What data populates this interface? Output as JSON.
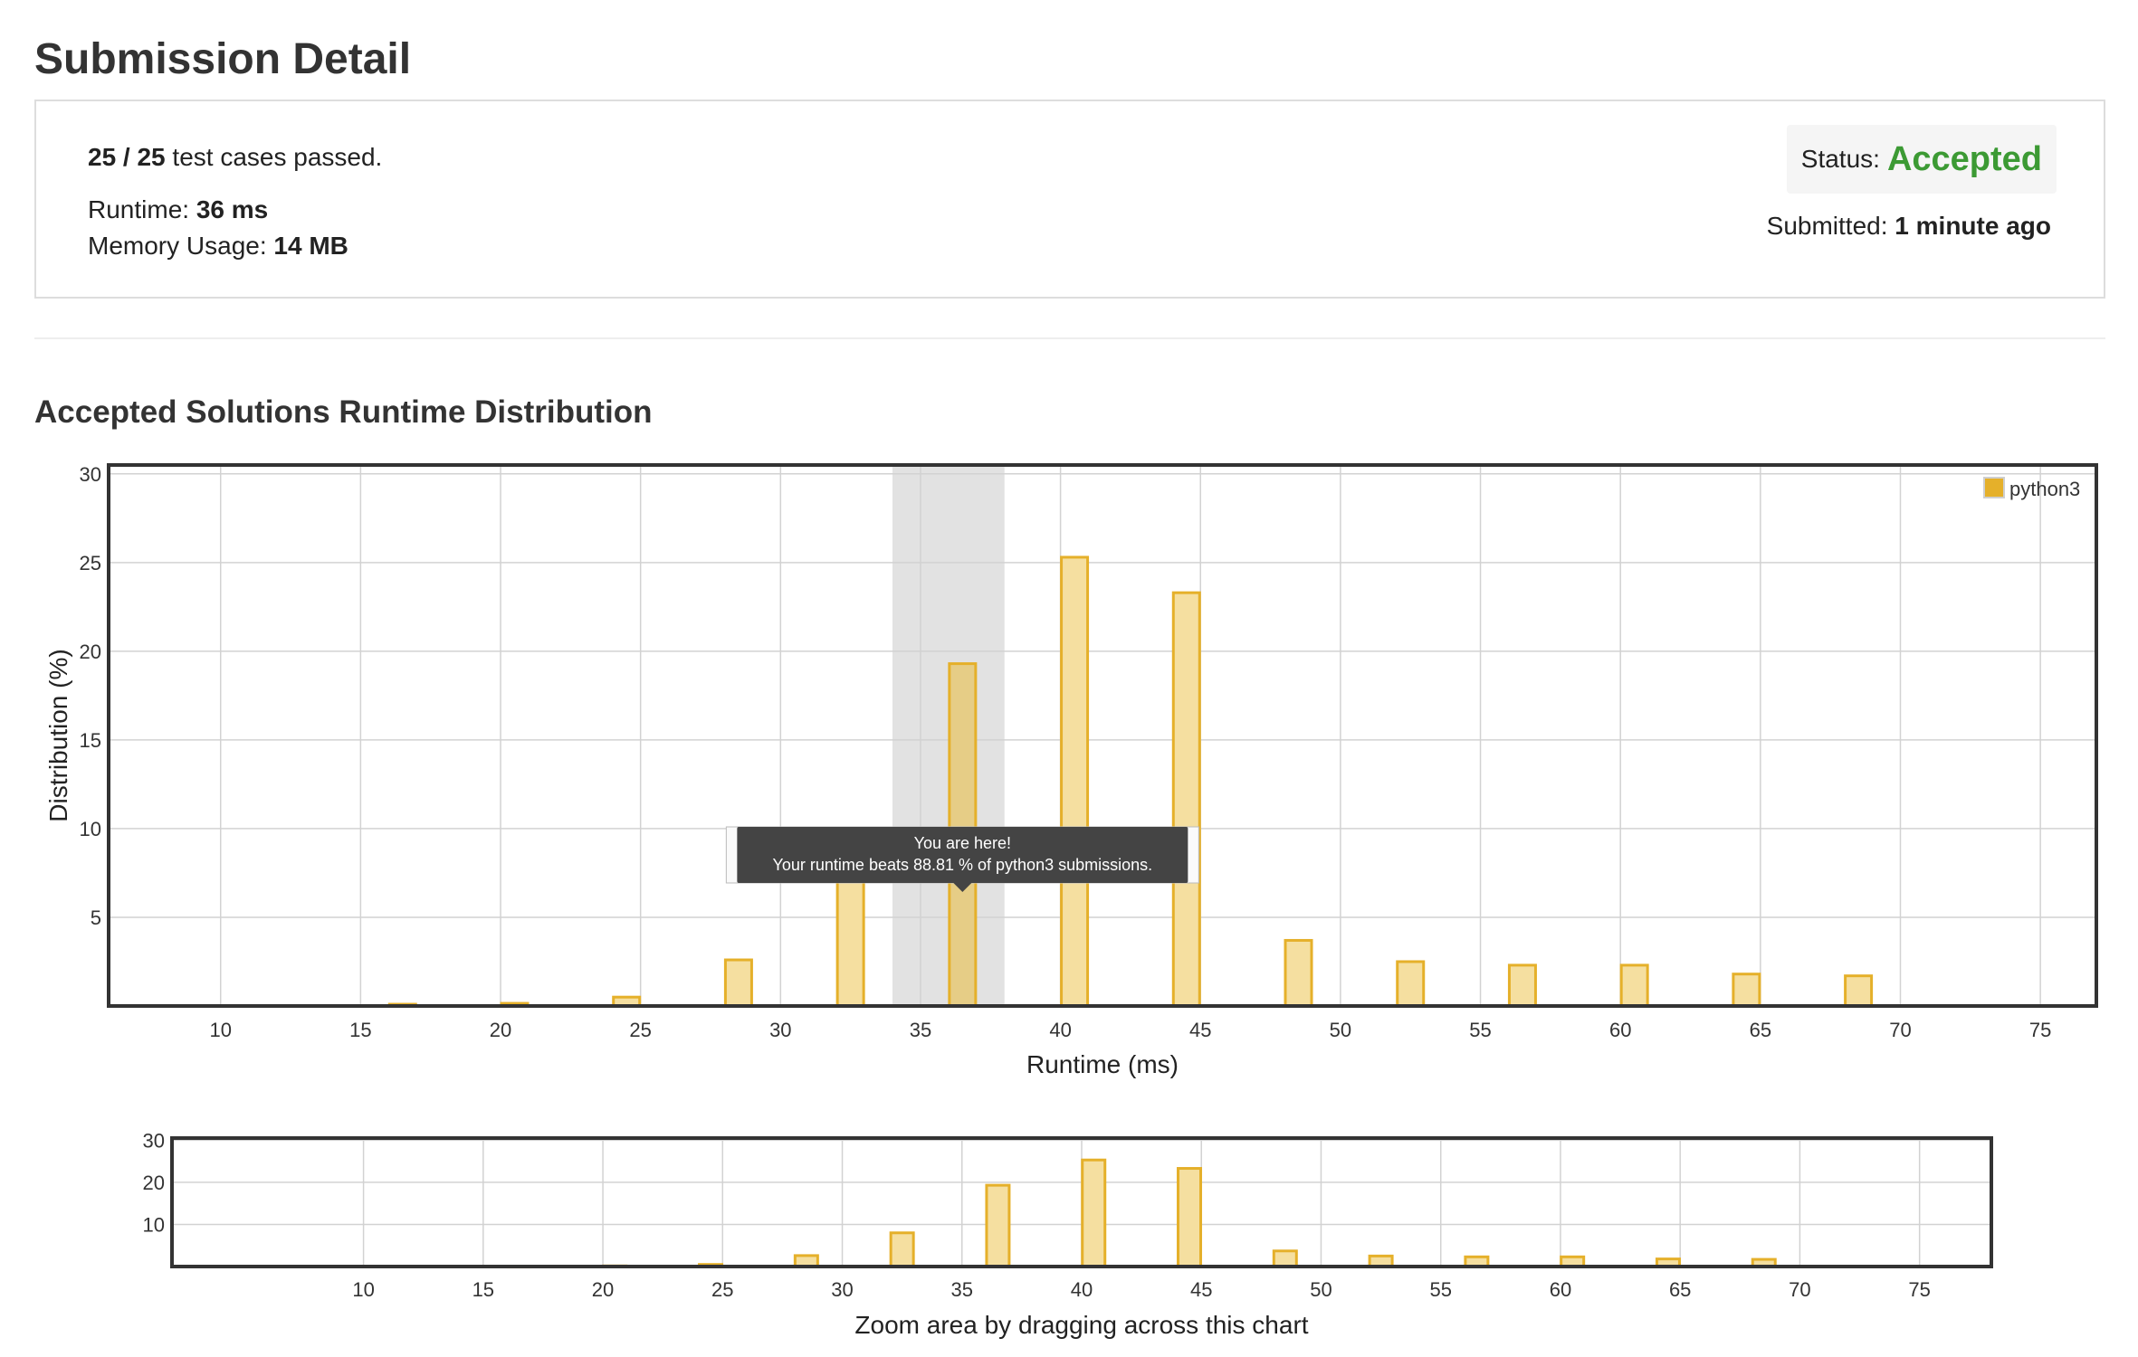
{
  "page": {
    "title": "Submission Detail",
    "section_title": "Accepted Solutions Runtime Distribution"
  },
  "summary": {
    "cases_passed": "25 / 25",
    "cases_suffix": "test cases passed.",
    "runtime_label": "Runtime:",
    "runtime_value": "36 ms",
    "memory_label": "Memory Usage:",
    "memory_value": "14 MB",
    "status_label": "Status:",
    "status_value": "Accepted",
    "submitted_label": "Submitted:",
    "submitted_value": "1 minute ago"
  },
  "colors": {
    "accepted": "#3c9a34",
    "bar_fill": "#f5dfa0",
    "bar_stroke": "#e5b02a",
    "highlight_band": "#e2e2e2",
    "tooltip_bg": "#444444"
  },
  "tooltip": {
    "line1": "You are here!",
    "line2": "Your runtime beats 88.81 % of python3 submissions."
  },
  "zoom_hint": "Zoom area by dragging across this chart",
  "chart_data": [
    {
      "type": "bar",
      "xlabel": "Runtime (ms)",
      "ylabel": "Distribution (%)",
      "xlim": [
        6,
        77
      ],
      "ylim": [
        0,
        30.5
      ],
      "xticks": [
        10,
        15,
        20,
        25,
        30,
        35,
        40,
        45,
        50,
        55,
        60,
        65,
        70,
        75
      ],
      "yticks": [
        5,
        10,
        15,
        20,
        25,
        30
      ],
      "grid": true,
      "legend_position": "top-right",
      "highlight_range": [
        34,
        38
      ],
      "current_bin": 36.5,
      "series": [
        {
          "name": "python3",
          "x": [
            16.5,
            20.5,
            24.5,
            28.5,
            32.5,
            36.5,
            40.5,
            44.5,
            48.5,
            52.5,
            56.5,
            60.5,
            64.5,
            68.5
          ],
          "values": [
            0.1,
            0.15,
            0.5,
            2.6,
            8.0,
            19.3,
            25.3,
            23.3,
            3.7,
            2.5,
            2.3,
            2.3,
            1.8,
            1.7
          ]
        }
      ]
    },
    {
      "type": "bar",
      "xlim": [
        2,
        78
      ],
      "ylim": [
        0,
        30.5
      ],
      "xticks": [
        10,
        15,
        20,
        25,
        30,
        35,
        40,
        45,
        50,
        55,
        60,
        65,
        70,
        75
      ],
      "yticks": [
        10,
        20,
        30
      ],
      "grid": true,
      "series": [
        {
          "name": "",
          "x": [
            16.5,
            20.5,
            24.5,
            28.5,
            32.5,
            36.5,
            40.5,
            44.5,
            48.5,
            52.5,
            56.5,
            60.5,
            64.5,
            68.5
          ],
          "values": [
            0.1,
            0.15,
            0.5,
            2.6,
            8.0,
            19.3,
            25.3,
            23.3,
            3.7,
            2.5,
            2.3,
            2.3,
            1.8,
            1.7
          ]
        }
      ]
    }
  ]
}
